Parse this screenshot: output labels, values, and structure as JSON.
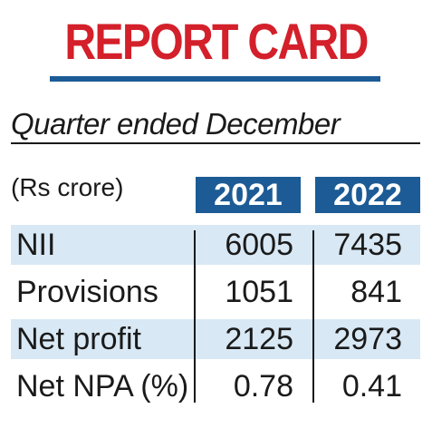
{
  "title": "REPORT CARD",
  "subtitle": "Quarter ended December",
  "unit": "(Rs crore)",
  "colors": {
    "title": "#d3202a",
    "accent": "#1c5b95",
    "row_shade": "#d8e8f4"
  },
  "chart_data": {
    "type": "table",
    "columns": [
      "2021",
      "2022"
    ],
    "rows": [
      {
        "label": "NII",
        "values": [
          "6005",
          "7435"
        ]
      },
      {
        "label": "Provisions",
        "values": [
          "1051",
          "841"
        ]
      },
      {
        "label": "Net profit",
        "values": [
          "2125",
          "2973"
        ]
      },
      {
        "label": "Net NPA (%)",
        "values": [
          "0.78",
          "0.41"
        ]
      }
    ]
  }
}
